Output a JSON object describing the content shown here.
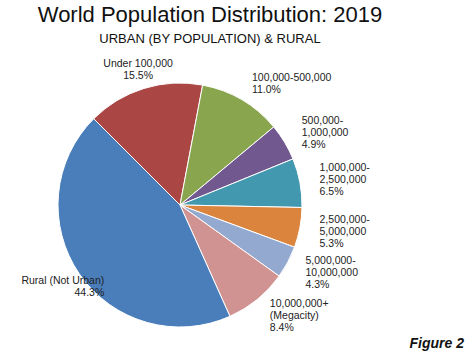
{
  "chart_data": {
    "type": "pie",
    "title": "World Population Distribution: 2019",
    "subtitle": "URBAN (BY POPULATION) & RURAL",
    "categories": [
      "Under 100,000",
      "100,000-500,000",
      "500,000-\n1,000,000",
      "1,000,000-\n2,500,000",
      "2,500,000-\n5,000,000",
      "5,000,000-\n10,000,000",
      "10,000,000+\n(Megacity)",
      "Rural (Not Urban)"
    ],
    "values": [
      15.5,
      11.0,
      4.9,
      6.5,
      5.3,
      4.3,
      8.4,
      44.3
    ],
    "value_labels": [
      "15.5%",
      "11.0%",
      "4.9%",
      "6.5%",
      "5.3%",
      "4.3%",
      "8.4%",
      "44.3%"
    ],
    "colors": [
      "#aa4643",
      "#89a54e",
      "#71588f",
      "#4198af",
      "#db843d",
      "#93a9cf",
      "#d19392",
      "#4a7ebb"
    ],
    "data_labels": true,
    "annotations": [
      "Figure 2"
    ]
  }
}
